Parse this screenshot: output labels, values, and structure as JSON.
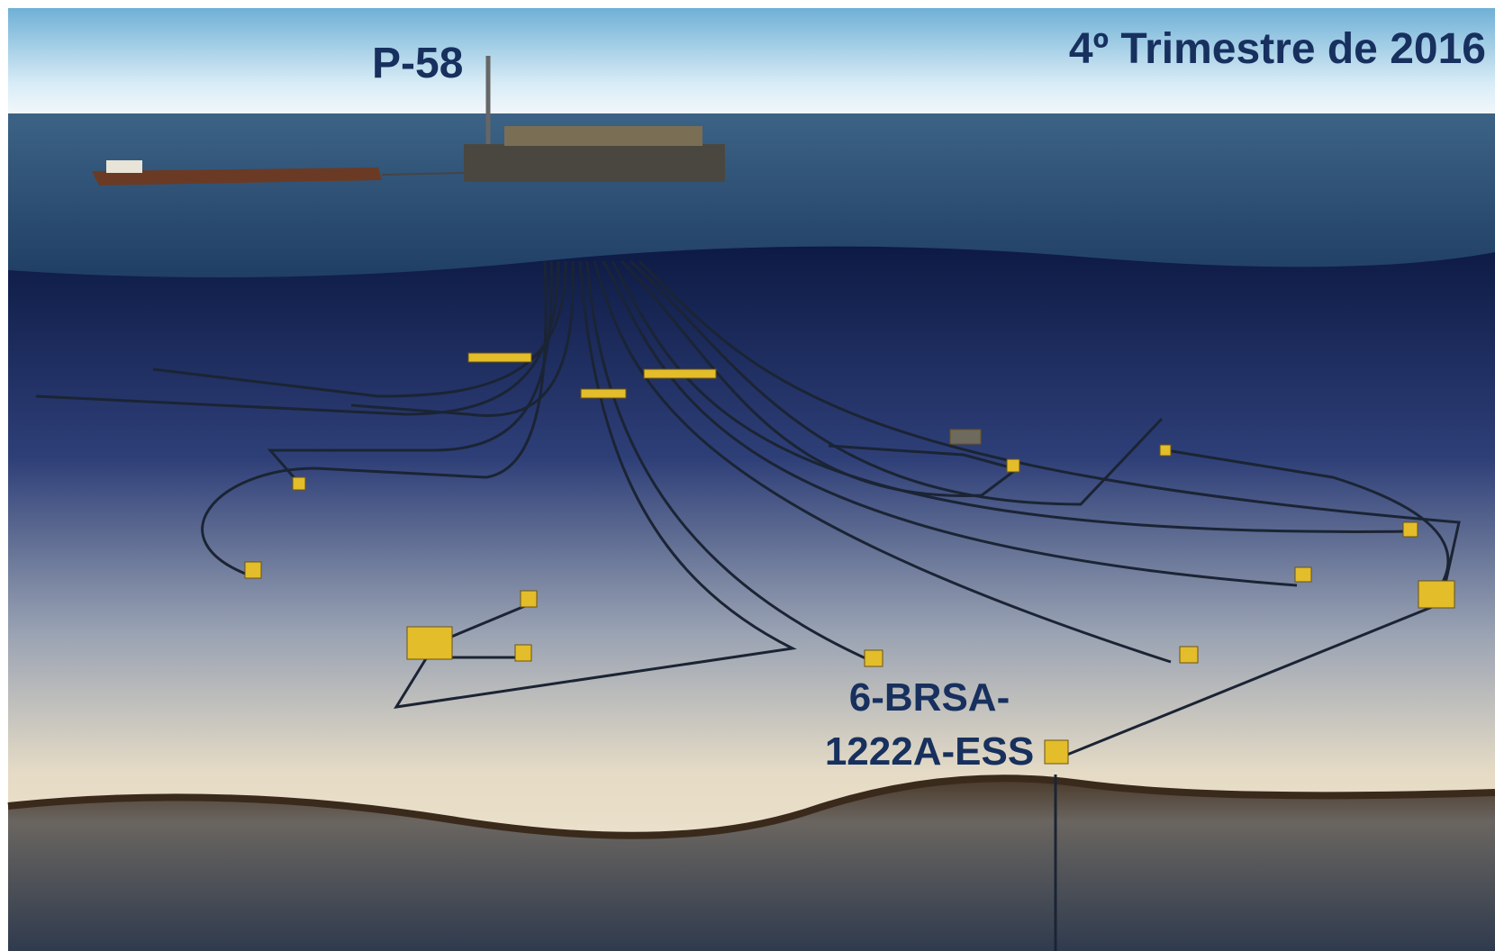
{
  "labels": {
    "platform": "P-58",
    "period": "4º Trimestre de 2016",
    "well": [
      "6-BRSA-",
      "1222A-ESS"
    ]
  }
}
